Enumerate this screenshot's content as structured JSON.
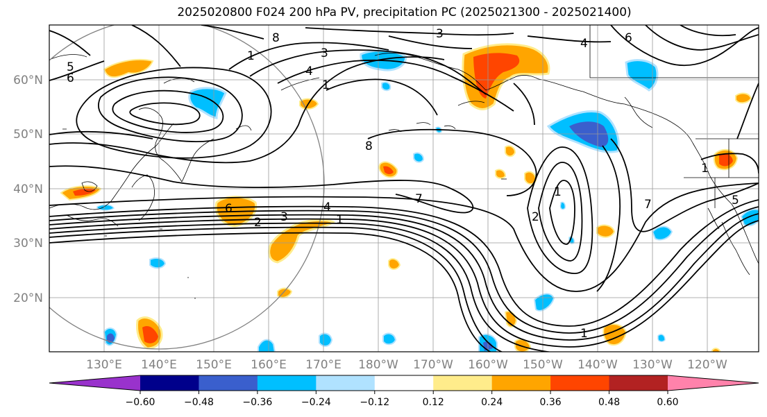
{
  "title": "2025020800 F024 200 hPa PV, precipitation PC (2025021300 - 2025021400)",
  "map": {
    "lat_ticks": [
      "60°N",
      "50°N",
      "40°N",
      "30°N",
      "20°N"
    ],
    "lon_ticks": [
      "130°E",
      "140°E",
      "150°E",
      "160°E",
      "170°E",
      "180°W",
      "170°W",
      "160°W",
      "150°W",
      "140°W",
      "130°W",
      "120°W"
    ],
    "contour_labels": [
      "3",
      "8",
      "5",
      "6",
      "1",
      "3",
      "4",
      "1",
      "6",
      "4",
      "8",
      "7",
      "6",
      "2",
      "3",
      "4",
      "1",
      "1",
      "2",
      "7",
      "1",
      "5",
      "1"
    ]
  },
  "colorbar": {
    "ticks": [
      "−0.60",
      "−0.48",
      "−0.36",
      "−0.24",
      "−0.12",
      "0.12",
      "0.24",
      "0.36",
      "0.48",
      "0.60"
    ],
    "colors": [
      "#9932cc",
      "#00008b",
      "#3a5fcd",
      "#00bfff",
      "#b0e2ff",
      "#ffffff",
      "#ffec8b",
      "#ffa500",
      "#ff4500",
      "#b22222",
      "#ff82ab"
    ]
  }
}
